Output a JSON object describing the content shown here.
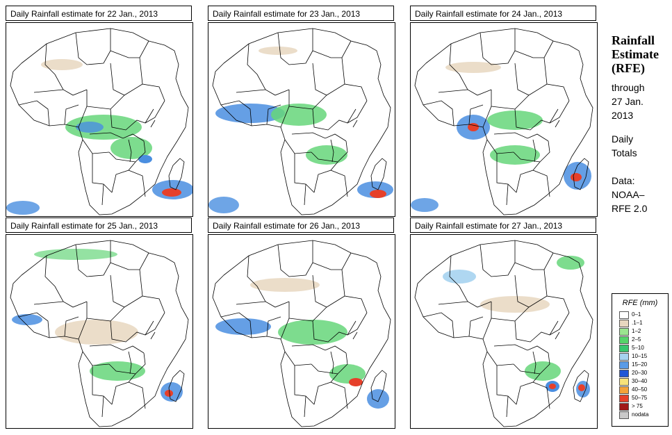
{
  "panels": [
    {
      "id": "p22",
      "title": "Daily Rainfall estimate for  22 Jan., 2013"
    },
    {
      "id": "p23",
      "title": "Daily Rainfall estimate for  23 Jan., 2013"
    },
    {
      "id": "p24",
      "title": "Daily Rainfall estimate for  24 Jan., 2013"
    },
    {
      "id": "p25",
      "title": "Daily Rainfall estimate for  25 Jan., 2013"
    },
    {
      "id": "p26",
      "title": "Daily Rainfall estimate for  26 Jan., 2013"
    },
    {
      "id": "p27",
      "title": "Daily Rainfall estimate for  27 Jan., 2013"
    }
  ],
  "side": {
    "title_line1": "Rainfall",
    "title_line2": "Estimate",
    "title_line3": "(RFE)",
    "through_line1": "through",
    "through_line2": "27 Jan.",
    "through_line3": "2013",
    "daily_line1": "Daily",
    "daily_line2": "Totals",
    "data_line1": "Data:",
    "data_line2": "NOAA–",
    "data_line3": "RFE 2.0"
  },
  "legend": {
    "title": "RFE (mm)",
    "items": [
      {
        "label": "0–1",
        "color": "#ffffff"
      },
      {
        "label": ".1–1",
        "color": "#e8d7bf"
      },
      {
        "label": "1–2",
        "color": "#9be58f"
      },
      {
        "label": "2–5",
        "color": "#56d46a"
      },
      {
        "label": "5–10",
        "color": "#38c76e"
      },
      {
        "label": "10–15",
        "color": "#a6d3f0"
      },
      {
        "label": "15–20",
        "color": "#5a9be6"
      },
      {
        "label": "20–30",
        "color": "#1f56d6"
      },
      {
        "label": "30–40",
        "color": "#f7e27a"
      },
      {
        "label": "40–50",
        "color": "#f4a23a"
      },
      {
        "label": "50–75",
        "color": "#e6402a"
      },
      {
        "label": "> 75",
        "color": "#a01818"
      },
      {
        "label": "nodata",
        "color": "#c9c9c9"
      }
    ]
  },
  "colors": {
    "land": "#ffffff",
    "border": "#000000",
    "light": "#e8d7bf",
    "green": "#66d67a",
    "blue": "#4a8ee0",
    "red": "#e6402a"
  }
}
